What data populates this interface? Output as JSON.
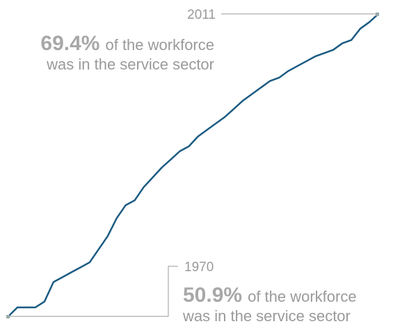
{
  "chart_data": {
    "type": "line",
    "x": [
      1970,
      1971,
      1972,
      1973,
      1974,
      1975,
      1976,
      1977,
      1978,
      1979,
      1980,
      1981,
      1982,
      1983,
      1984,
      1985,
      1986,
      1987,
      1988,
      1989,
      1990,
      1991,
      1992,
      1993,
      1994,
      1995,
      1996,
      1997,
      1998,
      1999,
      2000,
      2001,
      2002,
      2003,
      2004,
      2005,
      2006,
      2007,
      2008,
      2009,
      2010,
      2011
    ],
    "series": [
      {
        "color": "#1b5b82",
        "values": [
          50.9,
          51.45,
          51.45,
          51.45,
          51.8,
          53.0,
          53.3,
          53.6,
          53.9,
          54.2,
          55.0,
          55.8,
          56.9,
          57.7,
          58.0,
          58.8,
          59.4,
          60.0,
          60.5,
          61.0,
          61.3,
          61.9,
          62.3,
          62.7,
          63.1,
          63.6,
          64.1,
          64.5,
          64.9,
          65.3,
          65.5,
          65.9,
          66.2,
          66.5,
          66.8,
          67.0,
          67.2,
          67.6,
          67.8,
          68.5,
          68.9,
          69.4
        ],
        "value_labels": [
          "50.9%",
          null,
          null,
          null,
          null,
          null,
          null,
          null,
          null,
          null,
          null,
          null,
          null,
          null,
          null,
          null,
          null,
          null,
          null,
          null,
          null,
          null,
          null,
          null,
          null,
          null,
          null,
          null,
          null,
          null,
          null,
          null,
          null,
          null,
          null,
          null,
          null,
          null,
          null,
          null,
          null,
          "69.4%"
        ]
      }
    ],
    "annotations": [
      {
        "line1": "of the workforce",
        "line2": "was in the service sector"
      },
      {
        "line1": "of the workforce",
        "line2": "was in the service sector"
      }
    ],
    "xlim": [
      1970,
      2011
    ],
    "ylim": [
      50.9,
      69.4
    ]
  }
}
